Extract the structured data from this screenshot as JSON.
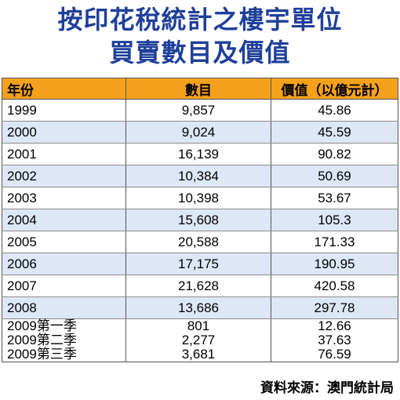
{
  "title": {
    "line1": "按印花稅統計之樓宇單位",
    "line2": "買賣數目及價值"
  },
  "table": {
    "headers": [
      "年份",
      "數目",
      "價值（以億元計）"
    ],
    "rows": [
      {
        "year": "1999",
        "count": "9,857",
        "value": "45.86"
      },
      {
        "year": "2000",
        "count": "9,024",
        "value": "45.59"
      },
      {
        "year": "2001",
        "count": "16,139",
        "value": "90.82"
      },
      {
        "year": "2002",
        "count": "10,384",
        "value": "50.69"
      },
      {
        "year": "2003",
        "count": "10,398",
        "value": "53.67"
      },
      {
        "year": "2004",
        "count": "15,608",
        "value": "105.3"
      },
      {
        "year": "2005",
        "count": "20,588",
        "value": "171.33"
      },
      {
        "year": "2006",
        "count": "17,175",
        "value": "190.95"
      },
      {
        "year": "2007",
        "count": "21,628",
        "value": "420.58"
      },
      {
        "year": "2008",
        "count": "13,686",
        "value": "297.78"
      }
    ],
    "quarter_rows": [
      {
        "year": "2009第一季",
        "count": "801",
        "value": "12.66"
      },
      {
        "year": "2009第二季",
        "count": "2,277",
        "value": "37.63"
      },
      {
        "year": "2009第三季",
        "count": "3,681",
        "value": "76.59"
      }
    ]
  },
  "source": "資料來源：澳門統計局",
  "colors": {
    "title": "#1f3f9a",
    "header_bg": "#f5a11c",
    "stripe_bg": "#dde7f6"
  }
}
